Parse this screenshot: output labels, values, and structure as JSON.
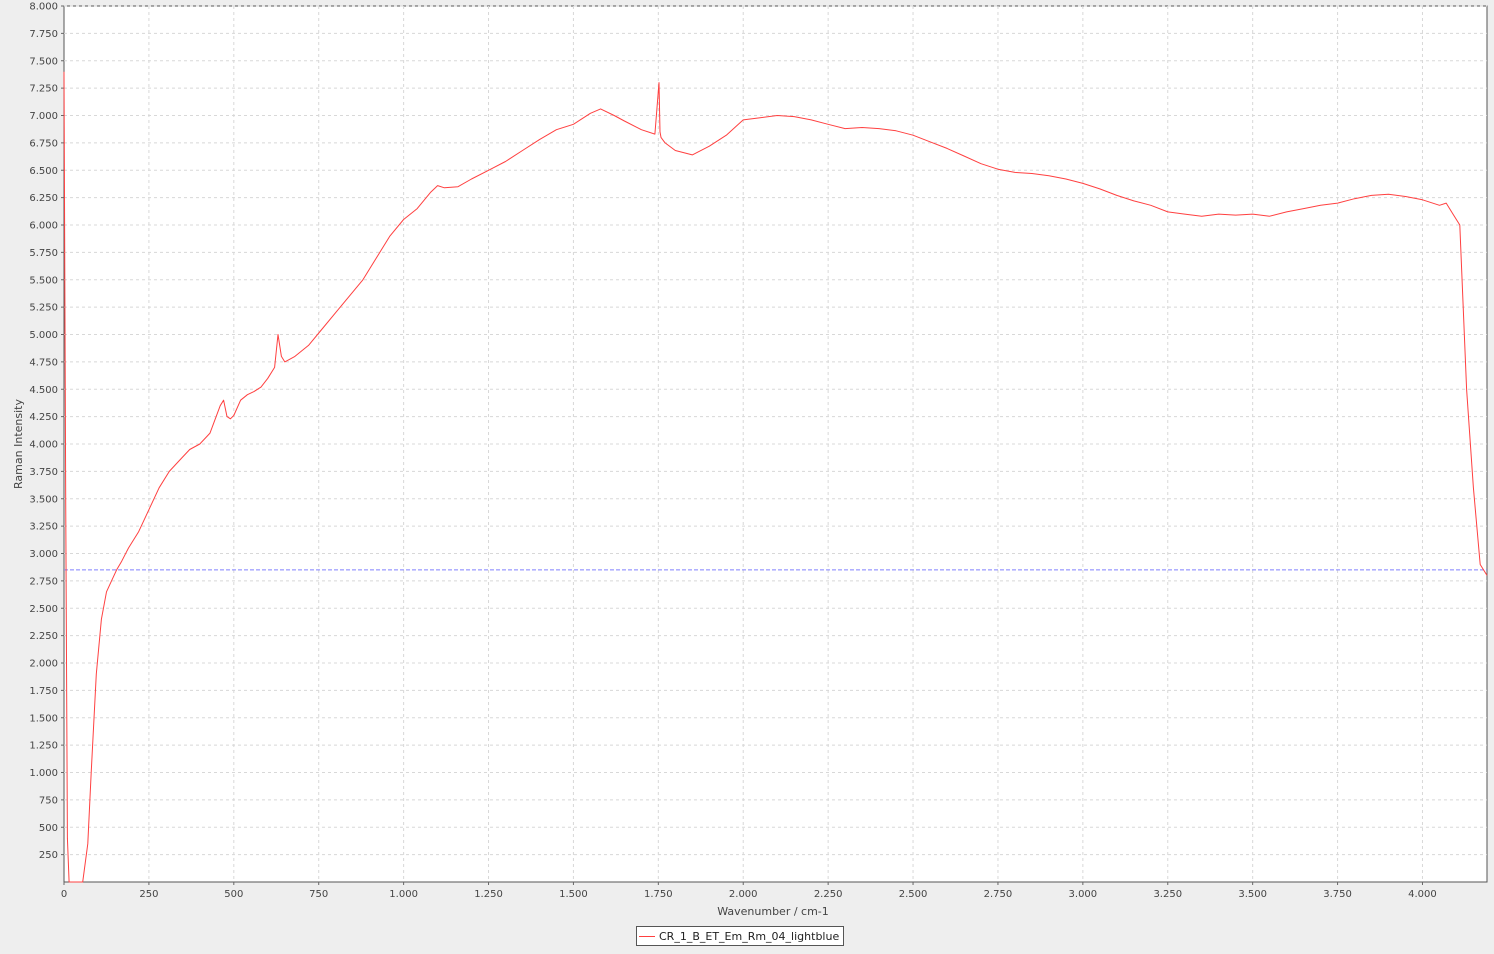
{
  "chart_data": {
    "type": "line",
    "xlabel": "Wavenumber / cm-1",
    "ylabel": "Raman Intensity",
    "xlim": [
      0,
      4190
    ],
    "ylim": [
      0,
      8000
    ],
    "x_ticks": [
      0,
      250,
      500,
      750,
      1000,
      1250,
      1500,
      1750,
      2000,
      2250,
      2500,
      2750,
      3000,
      3250,
      3500,
      3750,
      4000
    ],
    "x_tick_labels": [
      "0",
      "250",
      "500",
      "750",
      "1.000",
      "1.250",
      "1.500",
      "1.750",
      "2.000",
      "2.250",
      "2.500",
      "2.750",
      "3.000",
      "3.250",
      "3.500",
      "3.750",
      "4.000"
    ],
    "y_ticks": [
      250,
      500,
      750,
      1000,
      1250,
      1500,
      1750,
      2000,
      2250,
      2500,
      2750,
      3000,
      3250,
      3500,
      3750,
      4000,
      4250,
      4500,
      4750,
      5000,
      5250,
      5500,
      5750,
      6000,
      6250,
      6500,
      6750,
      7000,
      7250,
      7500,
      7750,
      8000
    ],
    "y_tick_labels": [
      "250",
      "500",
      "750",
      "1.000",
      "1.250",
      "1.500",
      "1.750",
      "2.000",
      "2.250",
      "2.500",
      "2.750",
      "3.000",
      "3.250",
      "3.500",
      "3.750",
      "4.000",
      "4.250",
      "4.500",
      "4.750",
      "5.000",
      "5.250",
      "5.500",
      "5.750",
      "6.000",
      "6.250",
      "6.500",
      "6.750",
      "7.000",
      "7.250",
      "7.500",
      "7.750",
      "8.000"
    ],
    "grid": true,
    "legend_position": "bottom-center",
    "threshold_line": {
      "y": 2850,
      "color": "#8080ff",
      "style": "dashed"
    },
    "series": [
      {
        "name": "CR_1_B_ET_Em_Rm_04_lightblue",
        "color": "#ff4040",
        "x": [
          0,
          5,
          10,
          15,
          20,
          30,
          40,
          55,
          70,
          80,
          95,
          110,
          125,
          140,
          155,
          170,
          190,
          220,
          250,
          280,
          310,
          340,
          370,
          400,
          430,
          460,
          470,
          480,
          490,
          500,
          520,
          540,
          560,
          580,
          600,
          620,
          630,
          640,
          650,
          680,
          720,
          760,
          800,
          840,
          880,
          920,
          960,
          1000,
          1040,
          1080,
          1100,
          1120,
          1160,
          1200,
          1250,
          1300,
          1350,
          1400,
          1450,
          1500,
          1550,
          1580,
          1620,
          1650,
          1700,
          1740,
          1752,
          1755,
          1758,
          1770,
          1800,
          1850,
          1900,
          1950,
          2000,
          2050,
          2100,
          2150,
          2200,
          2250,
          2300,
          2350,
          2400,
          2450,
          2500,
          2550,
          2600,
          2650,
          2700,
          2750,
          2800,
          2850,
          2900,
          2950,
          3000,
          3050,
          3100,
          3150,
          3200,
          3250,
          3300,
          3350,
          3400,
          3450,
          3500,
          3550,
          3600,
          3650,
          3700,
          3750,
          3800,
          3850,
          3900,
          3950,
          4000,
          4050,
          4070,
          4090,
          4110,
          4130,
          4150,
          4170,
          4190
        ],
        "y": [
          7400,
          3500,
          400,
          0,
          0,
          0,
          0,
          0,
          350,
          1000,
          1900,
          2400,
          2650,
          2750,
          2850,
          2930,
          3050,
          3200,
          3400,
          3600,
          3750,
          3850,
          3950,
          4000,
          4100,
          4350,
          4400,
          4250,
          4230,
          4260,
          4400,
          4450,
          4480,
          4520,
          4600,
          4700,
          5000,
          4800,
          4750,
          4800,
          4900,
          5050,
          5200,
          5350,
          5500,
          5700,
          5900,
          6050,
          6150,
          6300,
          6360,
          6340,
          6350,
          6420,
          6500,
          6580,
          6680,
          6780,
          6870,
          6920,
          7020,
          7060,
          7000,
          6950,
          6870,
          6830,
          7300,
          6850,
          6800,
          6750,
          6680,
          6640,
          6720,
          6820,
          6960,
          6980,
          7000,
          6990,
          6960,
          6920,
          6880,
          6890,
          6880,
          6860,
          6820,
          6760,
          6700,
          6630,
          6560,
          6510,
          6480,
          6470,
          6450,
          6420,
          6380,
          6330,
          6270,
          6220,
          6180,
          6120,
          6100,
          6080,
          6100,
          6090,
          6100,
          6080,
          6120,
          6150,
          6180,
          6200,
          6240,
          6270,
          6280,
          6260,
          6230,
          6180,
          6200,
          6100,
          6000,
          4500,
          3600,
          2900,
          2800
        ]
      }
    ]
  }
}
